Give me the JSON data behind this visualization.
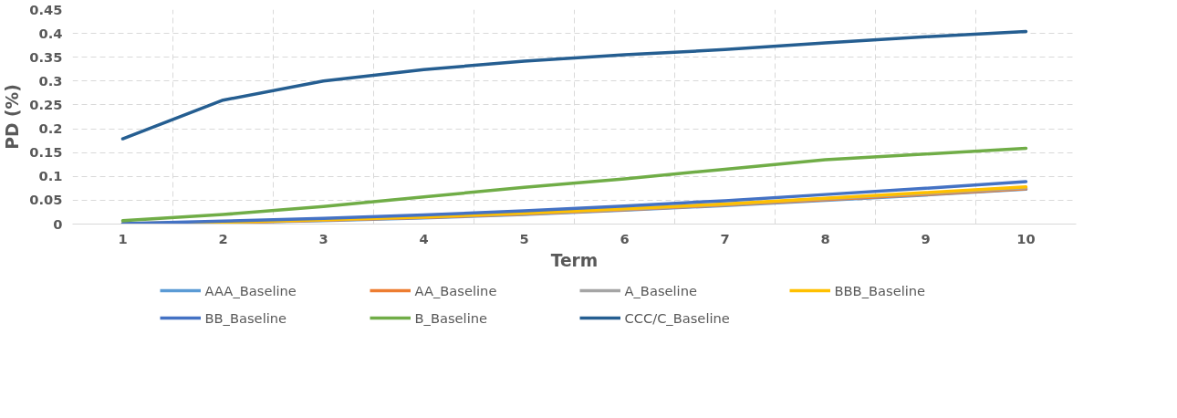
{
  "chart_data": {
    "type": "line",
    "xlabel": "Term",
    "ylabel": "PD (%)",
    "categories": [
      "1",
      "2",
      "3",
      "4",
      "5",
      "6",
      "7",
      "8",
      "9",
      "10"
    ],
    "ylim": [
      0,
      0.45
    ],
    "yticks": [
      0,
      0.05,
      0.1,
      0.15,
      0.2,
      0.25,
      0.3,
      0.35,
      0.4,
      0.45
    ],
    "grid": true,
    "legend": "bottom",
    "marker": "none",
    "line_style": "solid",
    "series": [
      {
        "name": "AAA_Baseline",
        "color": "#5b9bd5",
        "values": [
          0.0,
          0.003,
          0.007,
          0.013,
          0.02,
          0.029,
          0.039,
          0.05,
          0.061,
          0.073
        ]
      },
      {
        "name": "AA_Baseline",
        "color": "#ed7d31",
        "values": [
          0.0,
          0.003,
          0.008,
          0.014,
          0.021,
          0.03,
          0.04,
          0.051,
          0.062,
          0.074
        ]
      },
      {
        "name": "A_Baseline",
        "color": "#a5a5a5",
        "values": [
          0.001,
          0.004,
          0.009,
          0.015,
          0.022,
          0.031,
          0.041,
          0.053,
          0.064,
          0.076
        ]
      },
      {
        "name": "BBB_Baseline",
        "color": "#ffc000",
        "values": [
          0.001,
          0.004,
          0.009,
          0.015,
          0.023,
          0.032,
          0.042,
          0.054,
          0.066,
          0.078
        ]
      },
      {
        "name": "BB_Baseline",
        "color": "#4472c4",
        "values": [
          0.001,
          0.006,
          0.012,
          0.019,
          0.028,
          0.038,
          0.049,
          0.062,
          0.075,
          0.089
        ]
      },
      {
        "name": "B_Baseline",
        "color": "#70ad47",
        "values": [
          0.007,
          0.02,
          0.037,
          0.057,
          0.077,
          0.095,
          0.115,
          0.135,
          0.147,
          0.159
        ]
      },
      {
        "name": "CCC/C_Baseline",
        "color": "#255e91",
        "values": [
          0.179,
          0.26,
          0.3,
          0.324,
          0.342,
          0.355,
          0.366,
          0.38,
          0.393,
          0.404
        ]
      }
    ]
  }
}
